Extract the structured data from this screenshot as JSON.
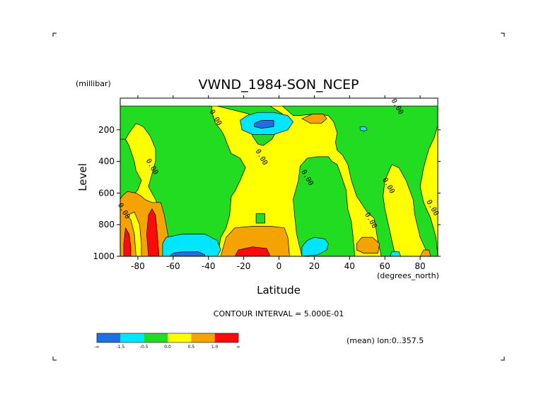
{
  "chart_data": {
    "type": "heatmap",
    "title": "VWND_1984-SON_NCEP",
    "xlabel": "Latitude",
    "x_unit": "(degrees_north)",
    "ylabel": "Level",
    "y_unit": "(millibar)",
    "xlim": [
      -90,
      90
    ],
    "ylim": [
      1000,
      0
    ],
    "xticks": [
      -80,
      -60,
      -40,
      -20,
      0,
      20,
      40,
      60,
      80
    ],
    "xtick_labels": [
      "-80",
      "-60",
      "-40",
      "-20",
      "0",
      "20",
      "40",
      "60",
      "80"
    ],
    "yticks": [
      200,
      400,
      600,
      800,
      1000
    ],
    "ytick_labels": [
      "200",
      "400",
      "600",
      "800",
      "1000"
    ],
    "contour_interval_text": "CONTOUR INTERVAL = 5.000E-01",
    "mean_text": "(mean) lon:0..357.5",
    "contour_labels": [
      {
        "text": "0.00",
        "lat": 66,
        "level": 60
      },
      {
        "text": "0.00",
        "lat": -37,
        "level": 130
      },
      {
        "text": "0.00",
        "lat": -73,
        "level": 440
      },
      {
        "text": "0.00",
        "lat": -11,
        "level": 380
      },
      {
        "text": "0.00",
        "lat": 15,
        "level": 510
      },
      {
        "text": "0.00",
        "lat": 61,
        "level": 560
      },
      {
        "text": "0.00",
        "lat": -89,
        "level": 720
      },
      {
        "text": "0.00",
        "lat": 51,
        "level": 780
      },
      {
        "text": "0.00",
        "lat": 86,
        "level": 700
      }
    ],
    "colorbar": {
      "colors": [
        "#1e6ee6",
        "#00e6ff",
        "#22dc22",
        "#ffff00",
        "#f5a300",
        "#ff0a0a"
      ],
      "labels": [
        "-∞",
        "-1.5",
        "-0.5",
        "0.0",
        "0.5",
        "1.0",
        "∞"
      ]
    },
    "regions": [
      {
        "fill": "#ffff00",
        "pts": [
          [
            -90,
            50
          ],
          [
            90,
            50
          ],
          [
            90,
            1000
          ],
          [
            -90,
            1000
          ]
        ]
      },
      {
        "fill": "#22dc22",
        "pts": [
          [
            -90,
            50
          ],
          [
            -38,
            50
          ],
          [
            -38,
            90
          ],
          [
            -36,
            160
          ],
          [
            -33,
            200
          ],
          [
            -31,
            240
          ],
          [
            -29,
            300
          ],
          [
            -27,
            350
          ],
          [
            -22,
            380
          ],
          [
            -19,
            440
          ],
          [
            -22,
            520
          ],
          [
            -25,
            590
          ],
          [
            -27,
            620
          ],
          [
            -28,
            740
          ],
          [
            -30,
            820
          ],
          [
            -33,
            880
          ],
          [
            -35,
            1000
          ],
          [
            -62,
            1000
          ],
          [
            -64,
            880
          ],
          [
            -66,
            760
          ],
          [
            -70,
            640
          ],
          [
            -74,
            560
          ],
          [
            -72,
            480
          ],
          [
            -70,
            400
          ],
          [
            -70,
            320
          ],
          [
            -73,
            240
          ],
          [
            -77,
            180
          ],
          [
            -81,
            160
          ],
          [
            -85,
            220
          ],
          [
            -87,
            260
          ],
          [
            -90,
            260
          ]
        ]
      },
      {
        "fill": "#22dc22",
        "pts": [
          [
            -35,
            50
          ],
          [
            -5,
            50
          ],
          [
            2,
            100
          ],
          [
            2,
            140
          ],
          [
            -4,
            260
          ],
          [
            -9,
            300
          ],
          [
            -12,
            290
          ],
          [
            -15,
            240
          ],
          [
            -16,
            200
          ],
          [
            -18,
            150
          ],
          [
            -17,
            100
          ]
        ]
      },
      {
        "fill": "#22dc22",
        "pts": [
          [
            -90,
            260
          ],
          [
            -87,
            260
          ],
          [
            -85,
            300
          ],
          [
            -82,
            400
          ],
          [
            -81,
            460
          ],
          [
            -78,
            520
          ],
          [
            -80,
            580
          ],
          [
            -84,
            630
          ],
          [
            -88,
            670
          ],
          [
            -90,
            680
          ]
        ]
      },
      {
        "fill": "#22dc22",
        "pts": [
          [
            2,
            50
          ],
          [
            90,
            50
          ],
          [
            90,
            170
          ],
          [
            88,
            250
          ],
          [
            85,
            320
          ],
          [
            82,
            440
          ],
          [
            80,
            560
          ],
          [
            82,
            660
          ],
          [
            86,
            760
          ],
          [
            89,
            880
          ],
          [
            90,
            1000
          ],
          [
            85,
            1000
          ],
          [
            80,
            880
          ],
          [
            77,
            740
          ],
          [
            76,
            640
          ],
          [
            72,
            520
          ],
          [
            68,
            440
          ],
          [
            64,
            420
          ],
          [
            60,
            520
          ],
          [
            59,
            620
          ],
          [
            60,
            700
          ],
          [
            62,
            800
          ],
          [
            64,
            900
          ],
          [
            66,
            1000
          ],
          [
            58,
            1000
          ],
          [
            56,
            900
          ],
          [
            54,
            760
          ],
          [
            50,
            720
          ],
          [
            44,
            620
          ],
          [
            41,
            520
          ],
          [
            39,
            420
          ],
          [
            36,
            360
          ],
          [
            33,
            330
          ],
          [
            32,
            280
          ],
          [
            33,
            220
          ],
          [
            31,
            150
          ],
          [
            28,
            110
          ],
          [
            20,
            100
          ],
          [
            12,
            110
          ],
          [
            8,
            110
          ]
        ]
      },
      {
        "fill": "#22dc22",
        "pts": [
          [
            30,
            400
          ],
          [
            28,
            370
          ],
          [
            22,
            370
          ],
          [
            16,
            380
          ],
          [
            12,
            430
          ],
          [
            11,
            520
          ],
          [
            8,
            640
          ],
          [
            9,
            760
          ],
          [
            10,
            860
          ],
          [
            13,
            1000
          ],
          [
            43,
            1000
          ],
          [
            42,
            880
          ],
          [
            41,
            780
          ],
          [
            39,
            700
          ],
          [
            38,
            580
          ],
          [
            35,
            480
          ],
          [
            33,
            420
          ]
        ]
      },
      {
        "fill": "#22dc22",
        "pts": [
          [
            -13,
            730
          ],
          [
            -8,
            730
          ],
          [
            -8,
            790
          ],
          [
            -13,
            790
          ]
        ]
      },
      {
        "fill": "#f5a300",
        "pts": [
          [
            -90,
            640
          ],
          [
            -89,
            620
          ],
          [
            -86,
            590
          ],
          [
            -81,
            600
          ],
          [
            -78,
            620
          ],
          [
            -76,
            640
          ],
          [
            -72,
            660
          ],
          [
            -67,
            660
          ],
          [
            -65,
            740
          ],
          [
            -63,
            860
          ],
          [
            -62,
            1000
          ],
          [
            -90,
            1000
          ]
        ]
      },
      {
        "fill": "#ffff00",
        "pts": [
          [
            -86,
            740
          ],
          [
            -84,
            770
          ],
          [
            -82,
            860
          ],
          [
            -81,
            1000
          ],
          [
            -78,
            1000
          ],
          [
            -78,
            920
          ],
          [
            -79,
            800
          ],
          [
            -82,
            720
          ]
        ]
      },
      {
        "fill": "#f5a300",
        "pts": [
          [
            -30,
            880
          ],
          [
            -25,
            820
          ],
          [
            -15,
            810
          ],
          [
            -5,
            810
          ],
          [
            3,
            820
          ],
          [
            5,
            880
          ],
          [
            6,
            1000
          ],
          [
            -33,
            1000
          ]
        ]
      },
      {
        "fill": "#ff0a0a",
        "pts": [
          [
            -87,
            820
          ],
          [
            -85,
            860
          ],
          [
            -84,
            940
          ],
          [
            -84,
            1000
          ],
          [
            -88,
            1000
          ],
          [
            -88,
            920
          ]
        ]
      },
      {
        "fill": "#ff0a0a",
        "pts": [
          [
            -72,
            700
          ],
          [
            -70,
            740
          ],
          [
            -69,
            860
          ],
          [
            -68,
            1000
          ],
          [
            -74,
            1000
          ],
          [
            -75,
            860
          ],
          [
            -74,
            740
          ]
        ]
      },
      {
        "fill": "#ff0a0a",
        "pts": [
          [
            -23,
            960
          ],
          [
            -15,
            940
          ],
          [
            -7,
            950
          ],
          [
            -5,
            1000
          ],
          [
            -25,
            1000
          ]
        ]
      },
      {
        "fill": "#f5a300",
        "pts": [
          [
            13,
            130
          ],
          [
            19,
            100
          ],
          [
            25,
            100
          ],
          [
            27,
            130
          ],
          [
            24,
            160
          ],
          [
            18,
            160
          ]
        ]
      },
      {
        "fill": "#f5a300",
        "pts": [
          [
            44,
            920
          ],
          [
            47,
            880
          ],
          [
            53,
            880
          ],
          [
            57,
            920
          ],
          [
            56,
            980
          ],
          [
            48,
            980
          ],
          [
            44,
            960
          ]
        ]
      },
      {
        "fill": "#f5a300",
        "pts": [
          [
            80,
            1000
          ],
          [
            82,
            960
          ],
          [
            85,
            960
          ],
          [
            86,
            1000
          ]
        ]
      },
      {
        "fill": "#00e6ff",
        "pts": [
          [
            -64,
            880
          ],
          [
            -55,
            860
          ],
          [
            -42,
            860
          ],
          [
            -35,
            900
          ],
          [
            -33,
            960
          ],
          [
            -35,
            1000
          ],
          [
            -66,
            1000
          ],
          [
            -66,
            920
          ]
        ]
      },
      {
        "fill": "#1e6ee6",
        "pts": [
          [
            -60,
            980
          ],
          [
            -54,
            970
          ],
          [
            -46,
            970
          ],
          [
            -42,
            990
          ],
          [
            -42,
            1000
          ],
          [
            -62,
            1000
          ]
        ]
      },
      {
        "fill": "#00e6ff",
        "pts": [
          [
            -22,
            140
          ],
          [
            -18,
            110
          ],
          [
            -12,
            90
          ],
          [
            -3,
            90
          ],
          [
            5,
            110
          ],
          [
            8,
            150
          ],
          [
            5,
            200
          ],
          [
            -3,
            230
          ],
          [
            -15,
            230
          ],
          [
            -21,
            200
          ]
        ]
      },
      {
        "fill": "#1e6ee6",
        "pts": [
          [
            -14,
            160
          ],
          [
            -10,
            140
          ],
          [
            -3,
            140
          ],
          [
            -3,
            180
          ],
          [
            -10,
            190
          ],
          [
            -14,
            180
          ]
        ]
      },
      {
        "fill": "#00e6ff",
        "pts": [
          [
            13,
            940
          ],
          [
            16,
            900
          ],
          [
            20,
            880
          ],
          [
            26,
            890
          ],
          [
            28,
            920
          ],
          [
            27,
            960
          ],
          [
            22,
            990
          ],
          [
            13,
            1000
          ]
        ]
      },
      {
        "fill": "#00e6ff",
        "pts": [
          [
            46,
            180
          ],
          [
            49,
            180
          ],
          [
            50,
            200
          ],
          [
            48,
            210
          ],
          [
            46,
            200
          ]
        ]
      },
      {
        "fill": "#00e6ff",
        "pts": [
          [
            63,
            1000
          ],
          [
            64,
            970
          ],
          [
            68,
            970
          ],
          [
            69,
            1000
          ]
        ]
      }
    ]
  }
}
